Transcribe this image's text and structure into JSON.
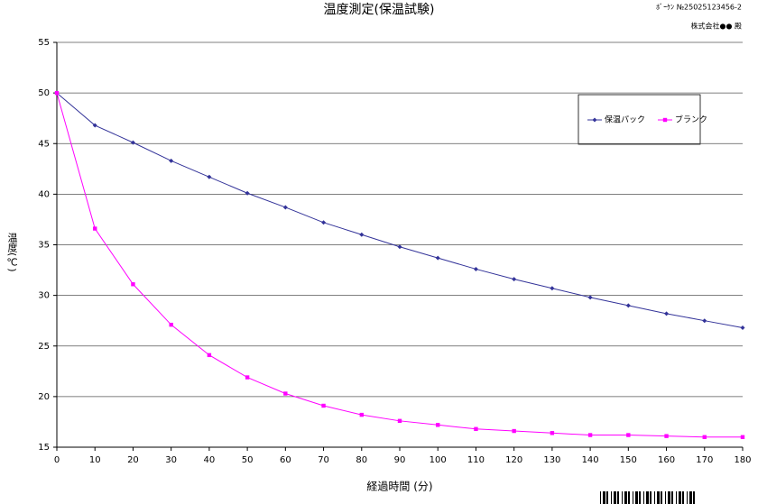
{
  "chart_data": {
    "type": "line",
    "title": "温度測定(保温試験)",
    "annotations": [
      "ﾎﾞｰｹﾝ №25025123456-2",
      "株式会社●● 殿"
    ],
    "x_label": "経過時間 (分)",
    "y_label": "温度(℃)",
    "x": [
      0,
      10,
      20,
      30,
      40,
      50,
      60,
      70,
      80,
      90,
      100,
      110,
      120,
      130,
      140,
      150,
      160,
      170,
      180
    ],
    "series": [
      {
        "name": "保温パック",
        "color": "#333399",
        "marker": "diamond",
        "values": [
          50,
          46.8,
          45.1,
          43.3,
          41.7,
          40.1,
          38.7,
          37.2,
          36.0,
          34.8,
          33.7,
          32.6,
          31.6,
          30.7,
          29.8,
          29.0,
          28.2,
          27.5,
          26.8
        ]
      },
      {
        "name": "ブランク",
        "color": "#ff00ff",
        "marker": "square",
        "values": [
          50,
          36.6,
          31.1,
          27.1,
          24.1,
          21.9,
          20.3,
          19.1,
          18.2,
          17.6,
          17.2,
          16.8,
          16.6,
          16.4,
          16.2,
          16.2,
          16.1,
          16.0,
          16.0
        ]
      }
    ],
    "xlim": [
      0,
      180
    ],
    "xticks": [
      0,
      10,
      20,
      30,
      40,
      50,
      60,
      70,
      80,
      90,
      100,
      110,
      120,
      130,
      140,
      150,
      160,
      170,
      180
    ],
    "ylim": [
      15,
      55
    ],
    "yticks": [
      15,
      20,
      25,
      30,
      35,
      40,
      45,
      50,
      55
    ],
    "grid": true
  }
}
